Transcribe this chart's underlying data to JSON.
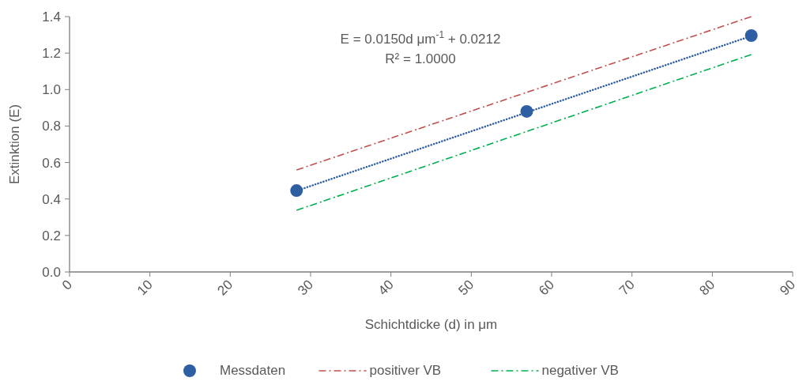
{
  "chart_data": {
    "type": "scatter",
    "xlabel": "Schichtdicke (d) in μm",
    "ylabel": "Extinktion (E)",
    "xlim": [
      0,
      90
    ],
    "xticks": [
      0,
      10,
      20,
      30,
      40,
      50,
      60,
      70,
      80,
      90
    ],
    "ylim": [
      0,
      1.4
    ],
    "yticks": [
      {
        "value": 0,
        "label": "0.0"
      },
      0.2,
      0.4,
      0.6,
      0.8,
      {
        "value": 1,
        "label": "1.0"
      },
      1.2,
      1.4
    ],
    "grid": false,
    "legend": "bottom",
    "annotations": [
      "E = 0.0150d μm$^{-1}$ + 0.0212",
      "R² = 1.0000"
    ],
    "series": [
      {
        "name": "Messdaten",
        "marker": "circle",
        "color": "#2e5fa3",
        "x": [
          28.25,
          56.9,
          84.85
        ],
        "values": [
          0.446,
          0.88,
          1.296
        ]
      },
      {
        "type": "line",
        "line_style": "dotted",
        "marker": "none",
        "color": "#2e5fa3",
        "x": [
          28.25,
          84.85
        ],
        "values": [
          0.445,
          1.294
        ]
      },
      {
        "name": "positiver VB",
        "type": "line",
        "line_style": "dashed",
        "marker": "none",
        "color": "#c0504d",
        "x": [
          28.25,
          84.85
        ],
        "values": [
          0.559,
          1.4
        ]
      },
      {
        "name": "negativer VB",
        "type": "line",
        "line_style": "dashed",
        "marker": "none",
        "color": "#00b050",
        "x": [
          28.25,
          84.85
        ],
        "values": [
          0.338,
          1.192
        ]
      }
    ]
  }
}
